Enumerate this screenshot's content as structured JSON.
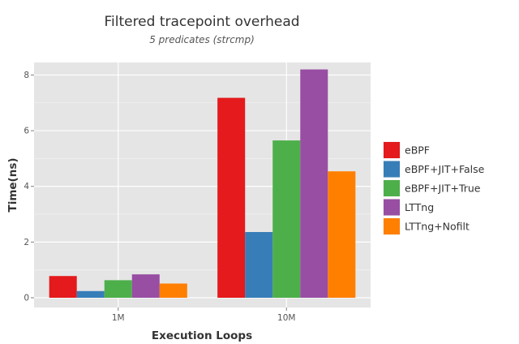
{
  "chart_data": {
    "type": "bar",
    "title": "Filtered tracepoint overhead",
    "subtitle": "5 predicates (strcmp)",
    "xlabel": "Execution Loops",
    "ylabel": "Time(ns)",
    "categories": [
      "1M",
      "10M"
    ],
    "ylim": [
      -0.35,
      8.45
    ],
    "yticks": [
      0,
      2,
      4,
      6,
      8
    ],
    "grid": true,
    "legend_position": "right",
    "series": [
      {
        "name": "eBPF",
        "color": "#E41A1C",
        "values": [
          0.78,
          7.18
        ]
      },
      {
        "name": "eBPF+JIT+False",
        "color": "#377EB8",
        "values": [
          0.24,
          2.36
        ]
      },
      {
        "name": "eBPF+JIT+True",
        "color": "#4DAF4A",
        "values": [
          0.63,
          5.65
        ]
      },
      {
        "name": "LTTng",
        "color": "#984EA3",
        "values": [
          0.84,
          8.2
        ]
      },
      {
        "name": "LTTng+Nofilt",
        "color": "#FF7F00",
        "values": [
          0.51,
          4.54
        ]
      }
    ]
  }
}
